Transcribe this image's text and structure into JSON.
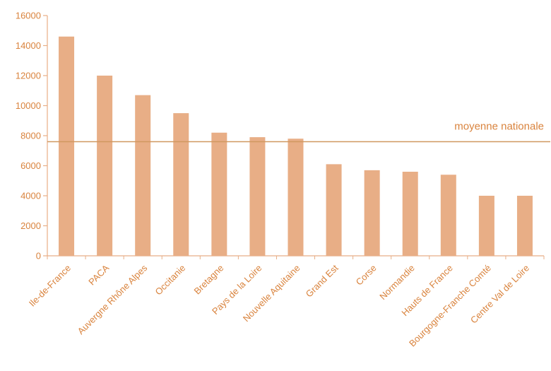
{
  "chart_data": {
    "type": "bar",
    "categories": [
      "Ile-de-France",
      "PACA",
      "Auvergne Rhône Alpes",
      "Occitanie",
      "Bretagne",
      "Pays de la Loire",
      "Nouvelle Aquitaine",
      "Grand Est",
      "Corse",
      "Normandie",
      "Hauts de France",
      "Bourgogne-Franche Comté",
      "Centre Val de Loire"
    ],
    "values": [
      14600,
      12000,
      10700,
      9500,
      8200,
      7900,
      7800,
      6100,
      5700,
      5600,
      5400,
      4000,
      4000
    ],
    "ylim": [
      0,
      16000
    ],
    "yticks": [
      "0",
      "2000",
      "4000",
      "6000",
      "8000",
      "10000",
      "12000",
      "14000",
      "16000"
    ],
    "grid": false,
    "legend": "none",
    "reference_line": {
      "label": "moyenne nationale",
      "value": 7600
    },
    "colors": {
      "bar": "#e8ae86",
      "axis": "#e8ae86",
      "text": "#d9833d",
      "reference_line": "#d09860"
    }
  }
}
